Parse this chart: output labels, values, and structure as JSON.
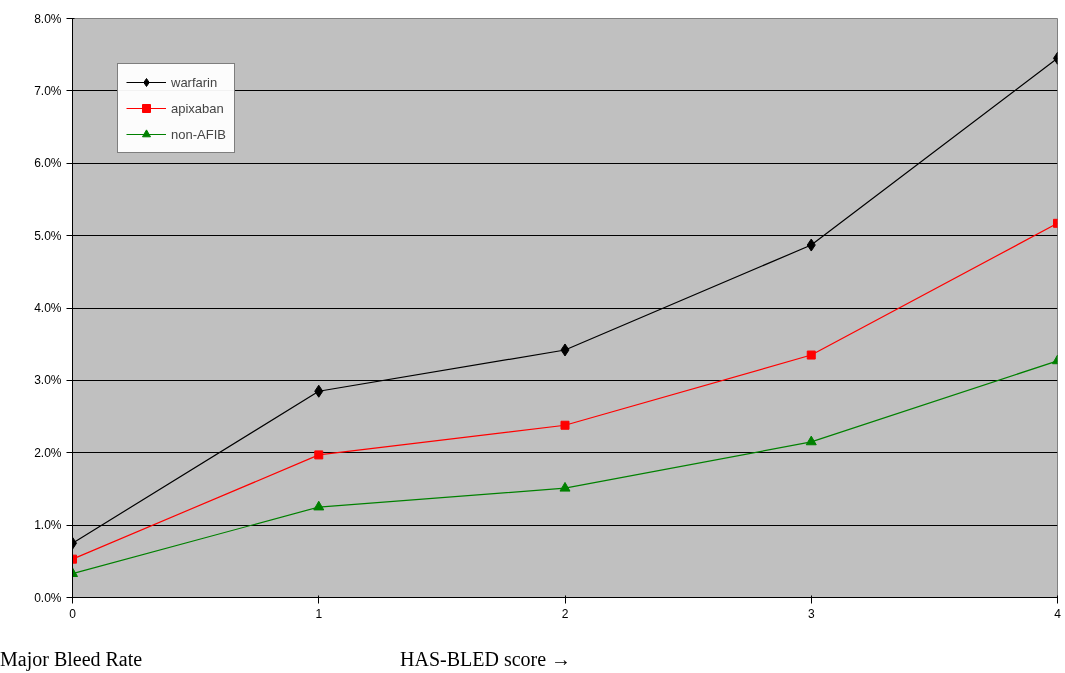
{
  "chart_data": {
    "type": "line",
    "xlabel": "HAS-BLED score →",
    "ylabel": "Major Bleed Rate",
    "x": [
      0,
      1,
      2,
      3,
      4
    ],
    "xlim": [
      0,
      4
    ],
    "xticks": [
      0,
      1,
      2,
      3,
      4
    ],
    "ylim": [
      0,
      8
    ],
    "yticks": [
      {
        "value": 0,
        "label": "0.0%"
      },
      {
        "value": 1,
        "label": "1.0%"
      },
      {
        "value": 2,
        "label": "2.0%"
      },
      {
        "value": 3,
        "label": "3.0%"
      },
      {
        "value": 4,
        "label": "4.0%"
      },
      {
        "value": 5,
        "label": "5.0%"
      },
      {
        "value": 6,
        "label": "6.0%"
      },
      {
        "value": 7,
        "label": "7.0%"
      },
      {
        "value": 8,
        "label": "8.0%"
      }
    ],
    "grid": "y",
    "legend": "top left",
    "line_style": "solid",
    "series": [
      {
        "name": "warfarin",
        "color": "#000000",
        "marker": "diamond",
        "values": [
          0.75,
          2.85,
          3.42,
          4.87,
          7.45
        ]
      },
      {
        "name": "apixaban",
        "color": "#ff0000",
        "marker": "square",
        "values": [
          0.53,
          1.97,
          2.38,
          3.35,
          5.17
        ]
      },
      {
        "name": "non-AFIB",
        "color": "#008000",
        "marker": "triangle",
        "values": [
          0.33,
          1.25,
          1.51,
          2.15,
          3.27
        ]
      }
    ]
  }
}
